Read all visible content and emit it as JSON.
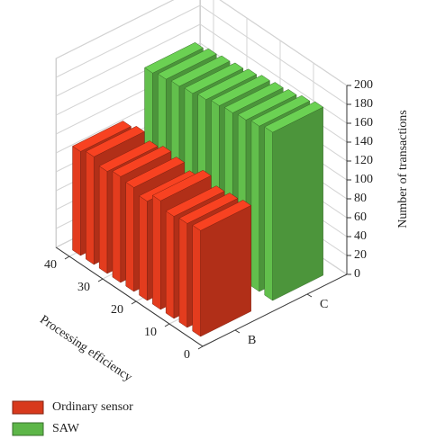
{
  "chart_data": {
    "type": "bar3d",
    "x_label": "Processing efficiency",
    "z_label": "Number of transactions",
    "categories": [
      "B",
      "C"
    ],
    "x": [
      4,
      8,
      12,
      16,
      20,
      24,
      28,
      32,
      36,
      40
    ],
    "series": [
      {
        "name": "Ordinary sensor",
        "color": "#d8391d",
        "values": [
          112,
          110,
          108,
          115,
          105,
          110,
          112,
          108,
          114,
          110
        ]
      },
      {
        "name": "SAW",
        "color": "#5db648",
        "values": [
          178,
          175,
          172,
          170,
          168,
          165,
          162,
          160,
          158,
          155
        ]
      }
    ],
    "xlim": [
      0,
      44
    ],
    "xticks": [
      0,
      10,
      20,
      30,
      40
    ],
    "zlim": [
      0,
      200
    ],
    "zticks": [
      0,
      20,
      40,
      60,
      80,
      100,
      120,
      140,
      160,
      180,
      200
    ],
    "grid": true,
    "legend": "bottom-left"
  }
}
